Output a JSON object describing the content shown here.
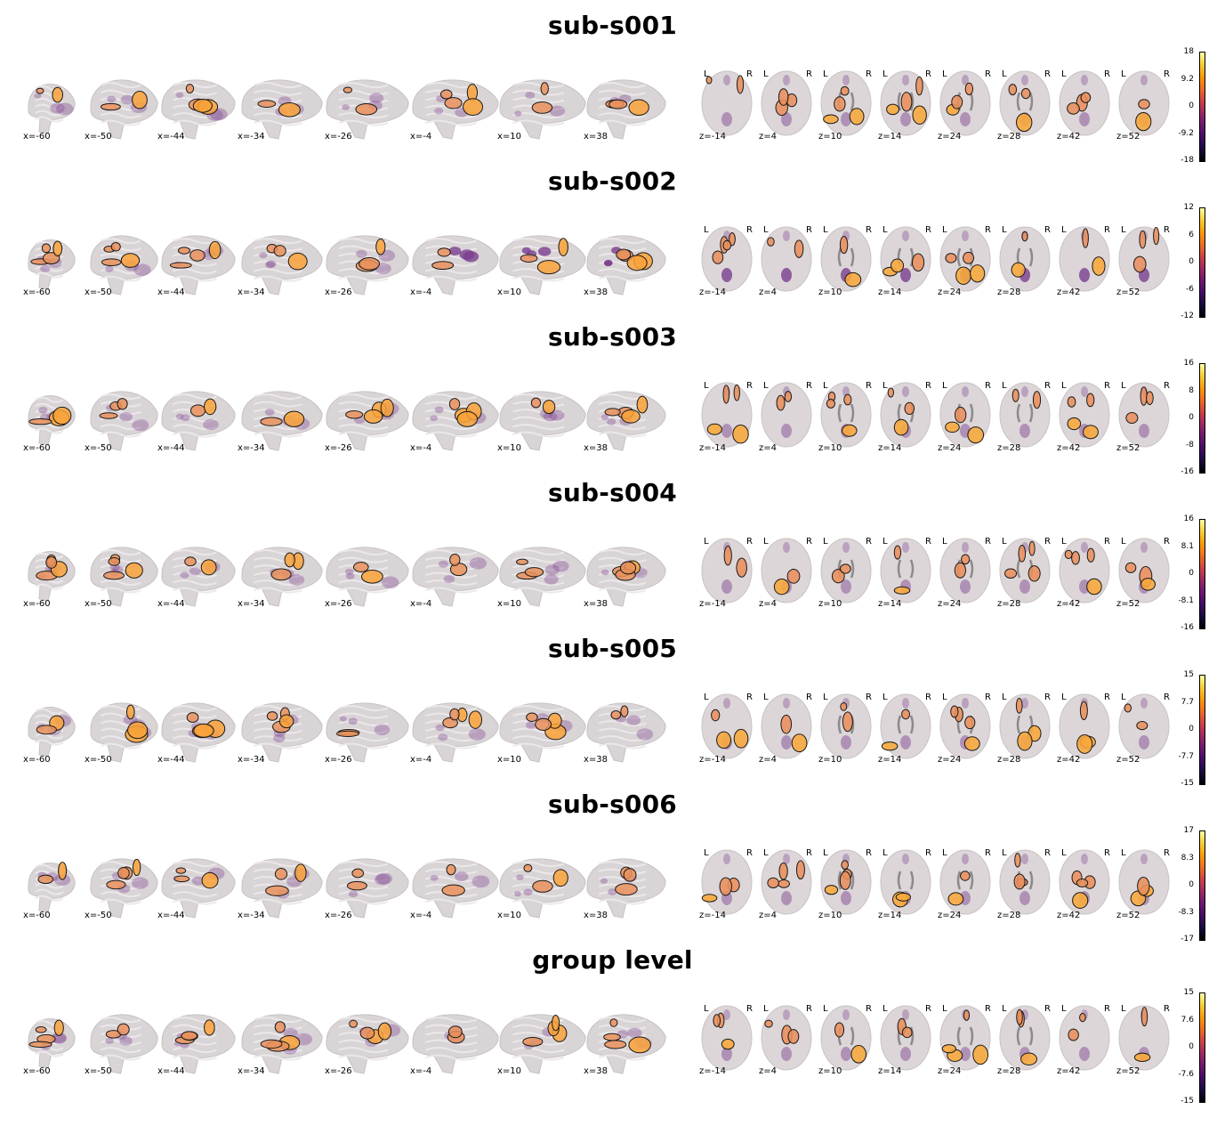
{
  "figure": {
    "sagittal_slices": [
      "x=-60",
      "x=-50",
      "x=-44",
      "x=-34",
      "x=-26",
      "x=-4",
      "x=10",
      "x=38"
    ],
    "axial_slices": [
      "z=-14",
      "z=4",
      "z=10",
      "z=14",
      "z=24",
      "z=28",
      "z=42",
      "z=52"
    ],
    "orientation_left": "L",
    "orientation_right": "R",
    "colormap": "inferno",
    "colormap_colors": [
      "#000004",
      "#4a0c6b",
      "#a52c60",
      "#ed6925",
      "#fcffa4"
    ],
    "panels": [
      {
        "title": "sub-s001",
        "colorbar": {
          "max": "18",
          "mid_pos": "9.2",
          "zero": "0",
          "mid_neg": "-9.2",
          "min": "-18"
        }
      },
      {
        "title": "sub-s002",
        "colorbar": {
          "max": "12",
          "mid_pos": "6",
          "zero": "0",
          "mid_neg": "-6",
          "min": "-12"
        }
      },
      {
        "title": "sub-s003",
        "colorbar": {
          "max": "16",
          "mid_pos": "8",
          "zero": "0",
          "mid_neg": "-8",
          "min": "-16"
        }
      },
      {
        "title": "sub-s004",
        "colorbar": {
          "max": "16",
          "mid_pos": "8.1",
          "zero": "0",
          "mid_neg": "-8.1",
          "min": "-16"
        }
      },
      {
        "title": "sub-s005",
        "colorbar": {
          "max": "15",
          "mid_pos": "7.7",
          "zero": "0",
          "mid_neg": "-7.7",
          "min": "-15"
        }
      },
      {
        "title": "sub-s006",
        "colorbar": {
          "max": "17",
          "mid_pos": "8.3",
          "zero": "0",
          "mid_neg": "-8.3",
          "min": "-17"
        }
      },
      {
        "title": "group level",
        "colorbar": {
          "max": "15",
          "mid_pos": "7.6",
          "zero": "0",
          "mid_neg": "-7.6",
          "min": "-15"
        }
      }
    ]
  }
}
